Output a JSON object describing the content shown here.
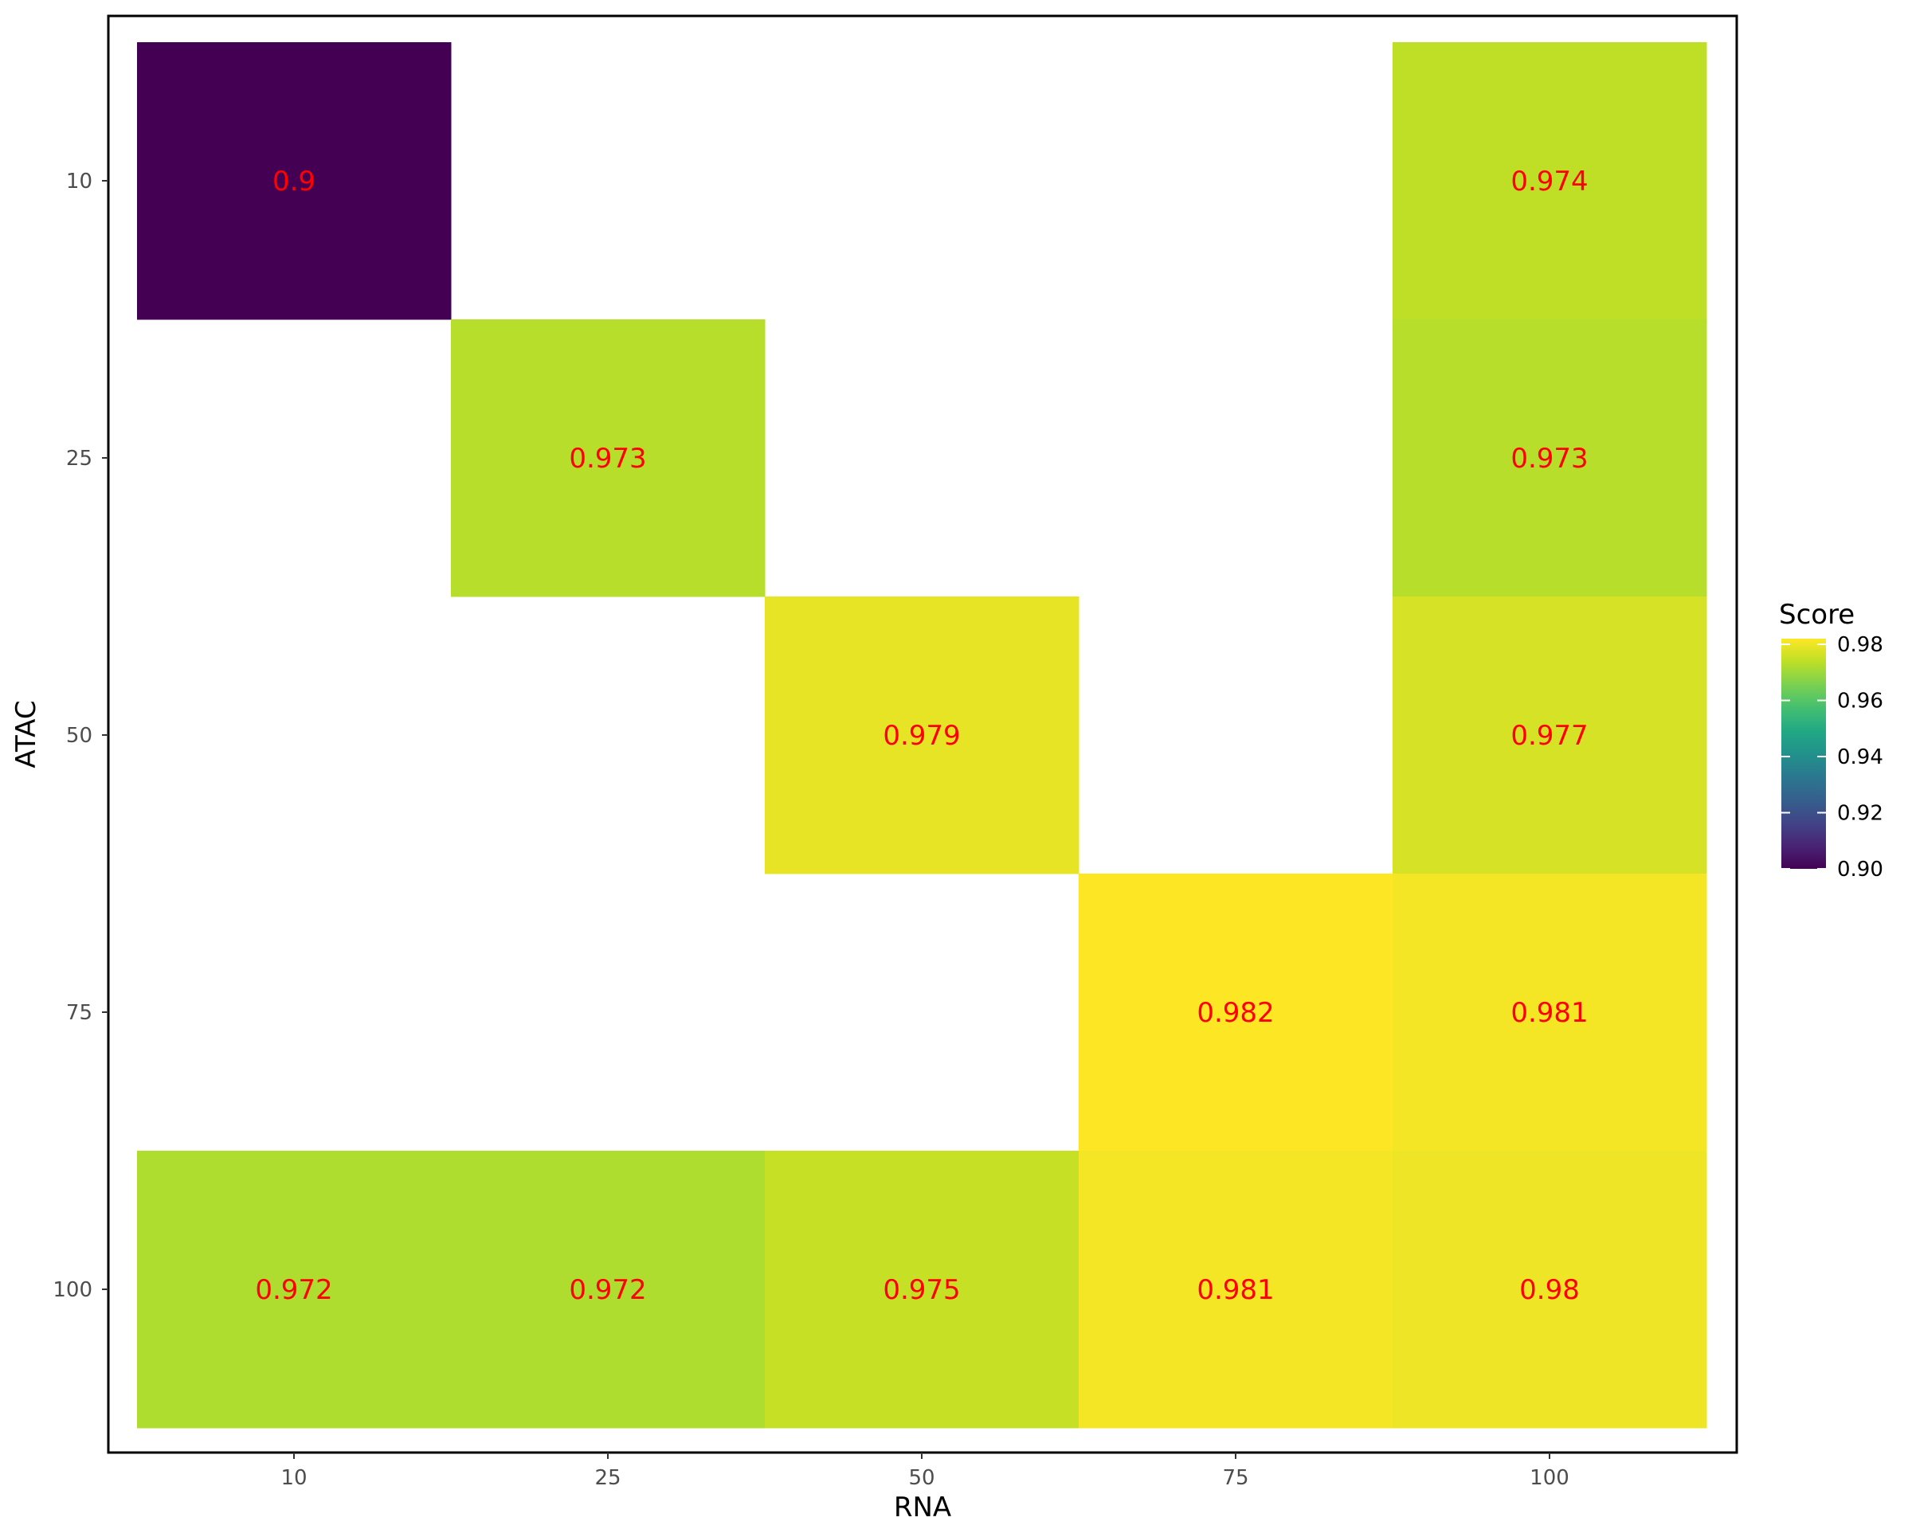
{
  "chart_data": {
    "type": "heatmap",
    "xlabel": "RNA",
    "ylabel": "ATAC",
    "x_categories": [
      "10",
      "25",
      "50",
      "75",
      "100"
    ],
    "y_categories": [
      "10",
      "25",
      "50",
      "75",
      "100"
    ],
    "cells": [
      {
        "x": "10",
        "y": "10",
        "value": 0.9,
        "label": "0.9"
      },
      {
        "x": "100",
        "y": "10",
        "value": 0.974,
        "label": "0.974"
      },
      {
        "x": "25",
        "y": "25",
        "value": 0.973,
        "label": "0.973"
      },
      {
        "x": "100",
        "y": "25",
        "value": 0.973,
        "label": "0.973"
      },
      {
        "x": "50",
        "y": "50",
        "value": 0.979,
        "label": "0.979"
      },
      {
        "x": "100",
        "y": "50",
        "value": 0.977,
        "label": "0.977"
      },
      {
        "x": "75",
        "y": "75",
        "value": 0.982,
        "label": "0.982"
      },
      {
        "x": "100",
        "y": "75",
        "value": 0.981,
        "label": "0.981"
      },
      {
        "x": "10",
        "y": "100",
        "value": 0.972,
        "label": "0.972"
      },
      {
        "x": "25",
        "y": "100",
        "value": 0.972,
        "label": "0.972"
      },
      {
        "x": "50",
        "y": "100",
        "value": 0.975,
        "label": "0.975"
      },
      {
        "x": "75",
        "y": "100",
        "value": 0.981,
        "label": "0.981"
      },
      {
        "x": "100",
        "y": "100",
        "value": 0.98,
        "label": "0.98"
      }
    ],
    "label_color": "#ff0000",
    "colorscale": "viridis",
    "legend": {
      "title": "Score",
      "min": 0.9,
      "max": 0.982,
      "ticks": [
        0.9,
        0.92,
        0.94,
        0.96,
        0.98
      ],
      "tick_labels": [
        "0.90",
        "0.92",
        "0.94",
        "0.96",
        "0.98"
      ],
      "position": "right"
    },
    "grid": false,
    "panel_border": true
  }
}
